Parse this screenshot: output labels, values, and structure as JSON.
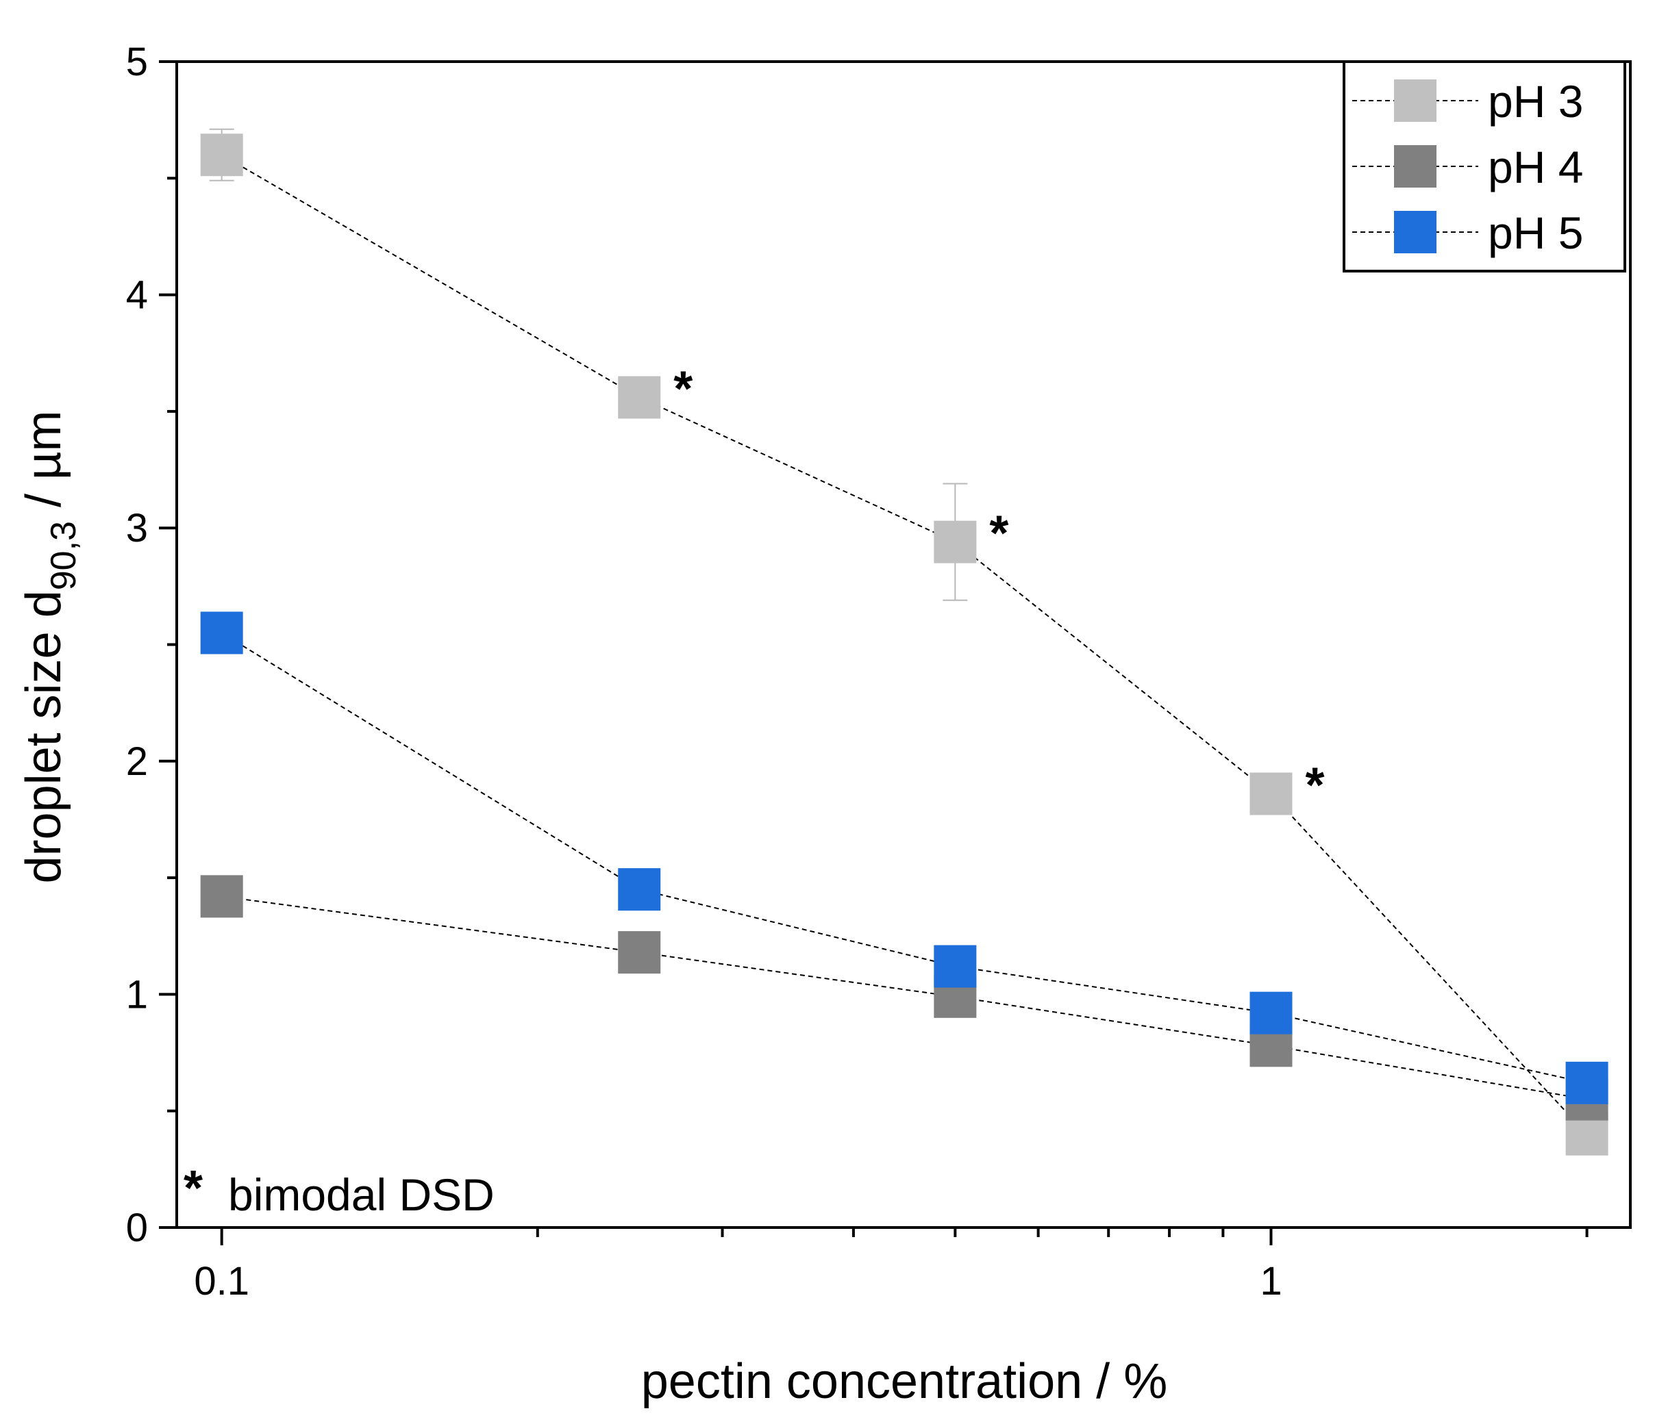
{
  "chart_data": {
    "type": "scatter",
    "xscale": "log",
    "xlabel": "pectin concentration / %",
    "ylabel_main": "droplet size d",
    "ylabel_sub": "90,3",
    "ylabel_unit": " / µm",
    "xlim": [
      0.0906,
      2.2
    ],
    "ylim": [
      0,
      5
    ],
    "xticks": [
      {
        "value": 0.1,
        "label": "0.1"
      },
      {
        "value": 1,
        "label": "1"
      }
    ],
    "yticks": [
      {
        "value": 0,
        "label": "0"
      },
      {
        "value": 1,
        "label": "1"
      },
      {
        "value": 2,
        "label": "2"
      },
      {
        "value": 3,
        "label": "3"
      },
      {
        "value": 4,
        "label": "4"
      },
      {
        "value": 5,
        "label": "5"
      }
    ],
    "x": [
      0.1,
      0.25,
      0.5,
      1.0,
      2.0
    ],
    "series": [
      {
        "name": "pH 3",
        "color": "#c0c0c0",
        "values": [
          4.6,
          3.56,
          2.94,
          1.86,
          0.4
        ],
        "err": [
          0.11,
          0,
          0.25,
          0,
          0
        ],
        "bimodal": [
          false,
          true,
          true,
          true,
          false
        ]
      },
      {
        "name": "pH 4",
        "color": "#808080",
        "values": [
          1.42,
          1.18,
          0.99,
          0.78,
          0.55
        ],
        "err": [
          0,
          0,
          0,
          0,
          0
        ],
        "bimodal": [
          false,
          false,
          false,
          false,
          false
        ]
      },
      {
        "name": "pH 5",
        "color": "#1e6fdc",
        "values": [
          2.55,
          1.45,
          1.12,
          0.92,
          0.62
        ],
        "err": [
          0,
          0,
          0.07,
          0.05,
          0.05
        ],
        "bimodal": [
          false,
          false,
          false,
          false,
          false
        ]
      }
    ],
    "legend_position": "top-right",
    "annotation": {
      "marker": "*",
      "text": "bimodal DSD"
    }
  }
}
